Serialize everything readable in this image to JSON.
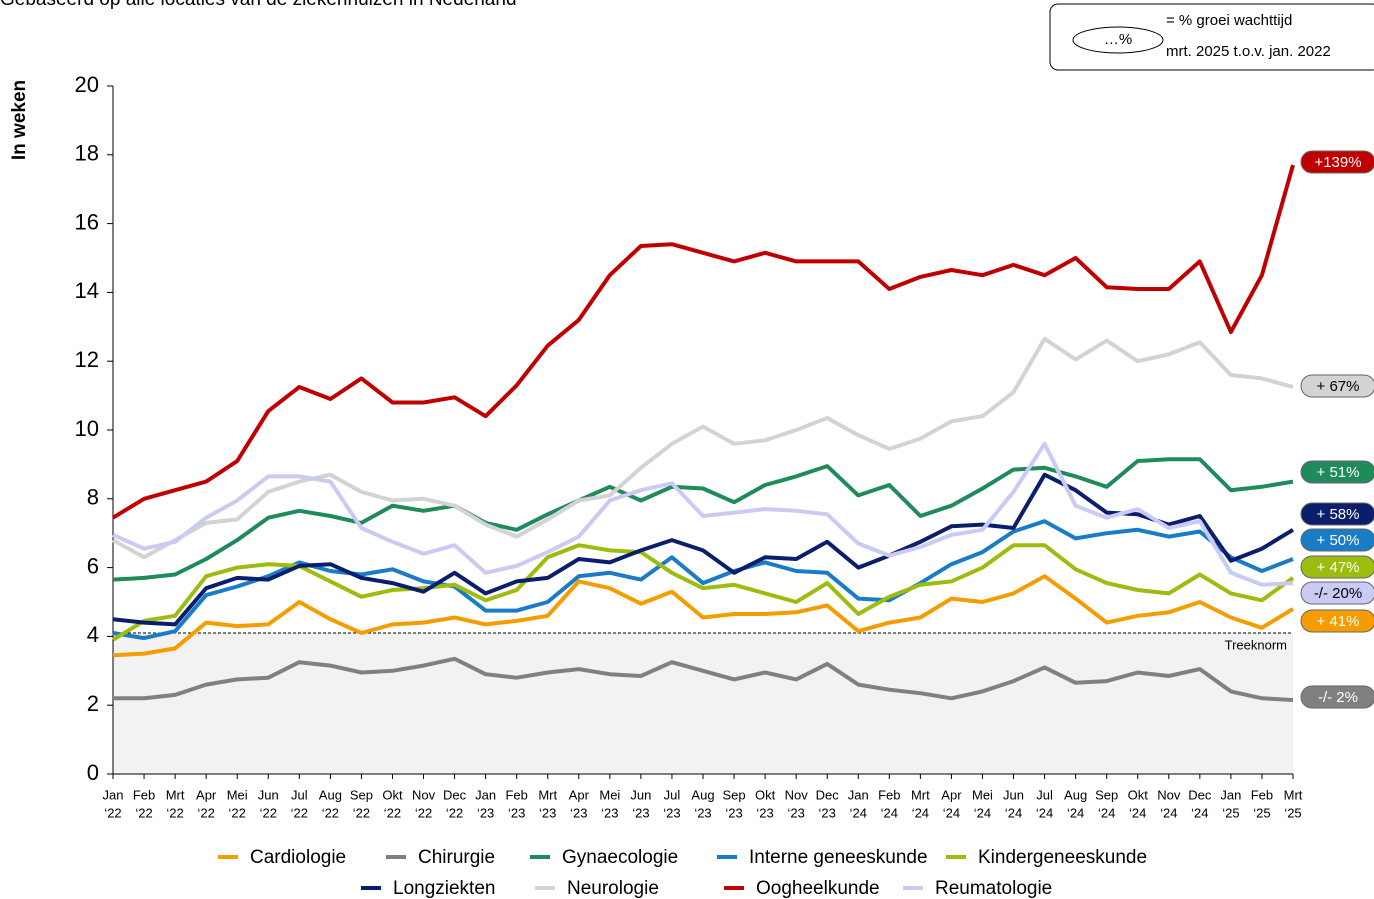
{
  "chart_data": {
    "type": "line",
    "subtitle": "Gebaseerd op alle locaties van de ziekenhuizen in Nederland",
    "y_label": "In weken",
    "annotation": {
      "symbol": "…%",
      "text": [
        "= % groei wachttijd",
        "mrt. 2025 t.o.v. jan. 2022"
      ]
    },
    "reference_line": {
      "value": 4.1,
      "label": "Treeknorm"
    },
    "ylim": [
      0,
      20
    ],
    "yticks": [
      0,
      2,
      4,
      6,
      8,
      10,
      12,
      14,
      16,
      18,
      20
    ],
    "grid": false,
    "categories": [
      [
        "Jan",
        "‘22"
      ],
      [
        "Feb",
        "‘22"
      ],
      [
        "Mrt",
        "‘22"
      ],
      [
        "Apr",
        "‘22"
      ],
      [
        "Mei",
        "‘22"
      ],
      [
        "Jun",
        "‘22"
      ],
      [
        "Jul",
        "‘22"
      ],
      [
        "Aug",
        "‘22"
      ],
      [
        "Sep",
        "‘22"
      ],
      [
        "Okt",
        "‘22"
      ],
      [
        "Nov",
        "‘22"
      ],
      [
        "Dec",
        "‘22"
      ],
      [
        "Jan",
        "‘23"
      ],
      [
        "Feb",
        "‘23"
      ],
      [
        "Mrt",
        "‘23"
      ],
      [
        "Apr",
        "‘23"
      ],
      [
        "Mei",
        "‘23"
      ],
      [
        "Jun",
        "‘23"
      ],
      [
        "Jul",
        "‘23"
      ],
      [
        "Aug",
        "‘23"
      ],
      [
        "Sep",
        "‘23"
      ],
      [
        "Okt",
        "‘23"
      ],
      [
        "Nov",
        "‘23"
      ],
      [
        "Dec",
        "‘23"
      ],
      [
        "Jan",
        "‘24"
      ],
      [
        "Feb",
        "‘24"
      ],
      [
        "Mrt",
        "‘24"
      ],
      [
        "Apr",
        "‘24"
      ],
      [
        "Mei",
        "‘24"
      ],
      [
        "Jun",
        "‘24"
      ],
      [
        "Jul",
        "‘24"
      ],
      [
        "Aug",
        "‘24"
      ],
      [
        "Sep",
        "‘24"
      ],
      [
        "Okt",
        "‘24"
      ],
      [
        "Nov",
        "‘24"
      ],
      [
        "Dec",
        "‘24"
      ],
      [
        "Jan",
        "‘25"
      ],
      [
        "Feb",
        "‘25"
      ],
      [
        "Mrt",
        "‘25"
      ]
    ],
    "series": [
      {
        "name": "Cardiologie",
        "color": "#f59c00",
        "end_label": "+ 41%",
        "values": [
          3.45,
          3.5,
          3.65,
          4.4,
          4.3,
          4.35,
          5.0,
          4.5,
          4.1,
          4.35,
          4.4,
          4.55,
          4.35,
          4.45,
          4.6,
          5.6,
          5.4,
          4.95,
          5.3,
          4.55,
          4.65,
          4.65,
          4.7,
          4.9,
          4.15,
          4.4,
          4.55,
          5.1,
          5.0,
          5.25,
          5.75,
          5.1,
          4.4,
          4.6,
          4.7,
          5.0,
          4.55,
          4.25,
          4.8
        ]
      },
      {
        "name": "Chirurgie",
        "color": "#808080",
        "end_label": "-/- 2%",
        "values": [
          2.2,
          2.2,
          2.3,
          2.6,
          2.75,
          2.8,
          3.25,
          3.15,
          2.95,
          3.0,
          3.15,
          3.35,
          2.9,
          2.8,
          2.95,
          3.05,
          2.9,
          2.85,
          3.25,
          3.0,
          2.75,
          2.95,
          2.75,
          3.2,
          2.6,
          2.45,
          2.35,
          2.2,
          2.4,
          2.7,
          3.1,
          2.65,
          2.7,
          2.95,
          2.85,
          3.05,
          2.4,
          2.2,
          2.15
        ]
      },
      {
        "name": "Gynaecologie",
        "color": "#1f8a5a",
        "end_label": "+ 51%",
        "values": [
          5.65,
          5.7,
          5.8,
          6.25,
          6.8,
          7.45,
          7.65,
          7.5,
          7.3,
          7.8,
          7.65,
          7.8,
          7.3,
          7.1,
          7.55,
          7.95,
          8.35,
          7.95,
          8.35,
          8.3,
          7.9,
          8.4,
          8.65,
          8.95,
          8.1,
          8.4,
          7.5,
          7.8,
          8.3,
          8.85,
          8.9,
          8.65,
          8.35,
          9.1,
          9.15,
          9.15,
          8.25,
          8.35,
          8.5
        ]
      },
      {
        "name": "Interne geneeskunde",
        "color": "#1a7cc7",
        "end_label": "+ 50%",
        "values": [
          4.1,
          3.95,
          4.15,
          5.2,
          5.45,
          5.75,
          6.15,
          5.9,
          5.8,
          5.95,
          5.6,
          5.45,
          4.75,
          4.75,
          5.0,
          5.75,
          5.85,
          5.65,
          6.3,
          5.55,
          5.9,
          6.15,
          5.9,
          5.85,
          5.1,
          5.05,
          5.55,
          6.1,
          6.45,
          7.05,
          7.35,
          6.85,
          7.0,
          7.1,
          6.9,
          7.05,
          6.3,
          5.9,
          6.25
        ]
      },
      {
        "name": "Kindergeneeskunde",
        "color": "#9cbd0e",
        "end_label": "+ 47%",
        "values": [
          3.9,
          4.45,
          4.6,
          5.75,
          6.0,
          6.1,
          6.05,
          5.6,
          5.15,
          5.35,
          5.4,
          5.5,
          5.05,
          5.35,
          6.3,
          6.65,
          6.5,
          6.45,
          5.85,
          5.4,
          5.5,
          5.25,
          5.0,
          5.55,
          4.65,
          5.15,
          5.5,
          5.6,
          6.0,
          6.65,
          6.65,
          5.95,
          5.55,
          5.35,
          5.25,
          5.8,
          5.25,
          5.05,
          5.7
        ]
      },
      {
        "name": "Longziekten",
        "color": "#0b1e6b",
        "end_label": "+ 58%",
        "values": [
          4.5,
          4.4,
          4.35,
          5.4,
          5.7,
          5.65,
          6.05,
          6.1,
          5.7,
          5.55,
          5.3,
          5.85,
          5.25,
          5.6,
          5.7,
          6.25,
          6.15,
          6.5,
          6.8,
          6.5,
          5.85,
          6.3,
          6.25,
          6.75,
          6.0,
          6.35,
          6.75,
          7.2,
          7.25,
          7.15,
          8.7,
          8.25,
          7.6,
          7.55,
          7.25,
          7.5,
          6.2,
          6.55,
          7.1
        ]
      },
      {
        "name": "Neurologie",
        "color": "#d3d3d3",
        "end_label": "+ 67%",
        "values": [
          6.8,
          6.3,
          6.8,
          7.3,
          7.4,
          8.2,
          8.5,
          8.7,
          8.2,
          7.95,
          8.0,
          7.8,
          7.25,
          6.9,
          7.4,
          7.95,
          8.1,
          8.9,
          9.6,
          10.1,
          9.6,
          9.7,
          10.0,
          10.35,
          9.85,
          9.45,
          9.75,
          10.25,
          10.4,
          11.1,
          12.65,
          12.05,
          12.6,
          12.0,
          12.2,
          12.55,
          11.6,
          11.5,
          11.25
        ]
      },
      {
        "name": "Oogheelkunde",
        "color": "#c00000",
        "end_label": "+139%",
        "values": [
          7.45,
          8.0,
          8.25,
          8.5,
          9.1,
          10.55,
          11.25,
          10.9,
          11.5,
          10.8,
          10.8,
          10.95,
          10.4,
          11.3,
          12.45,
          13.2,
          14.5,
          15.35,
          15.4,
          15.15,
          14.9,
          15.15,
          14.9,
          14.9,
          14.9,
          14.1,
          14.45,
          14.65,
          14.5,
          14.8,
          14.5,
          15.0,
          14.15,
          14.1,
          14.1,
          14.9,
          12.85,
          14.5,
          17.7
        ]
      },
      {
        "name": "Reumatologie",
        "color": "#c9cbf5",
        "end_label": "-/- 20%",
        "values": [
          6.95,
          6.55,
          6.75,
          7.45,
          7.95,
          8.65,
          8.65,
          8.5,
          7.15,
          6.75,
          6.4,
          6.65,
          5.85,
          6.05,
          6.45,
          6.9,
          7.95,
          8.25,
          8.45,
          7.5,
          7.6,
          7.7,
          7.65,
          7.55,
          6.7,
          6.35,
          6.6,
          6.95,
          7.1,
          8.2,
          9.6,
          7.8,
          7.45,
          7.7,
          7.15,
          7.35,
          5.85,
          5.5,
          5.55
        ]
      }
    ]
  }
}
